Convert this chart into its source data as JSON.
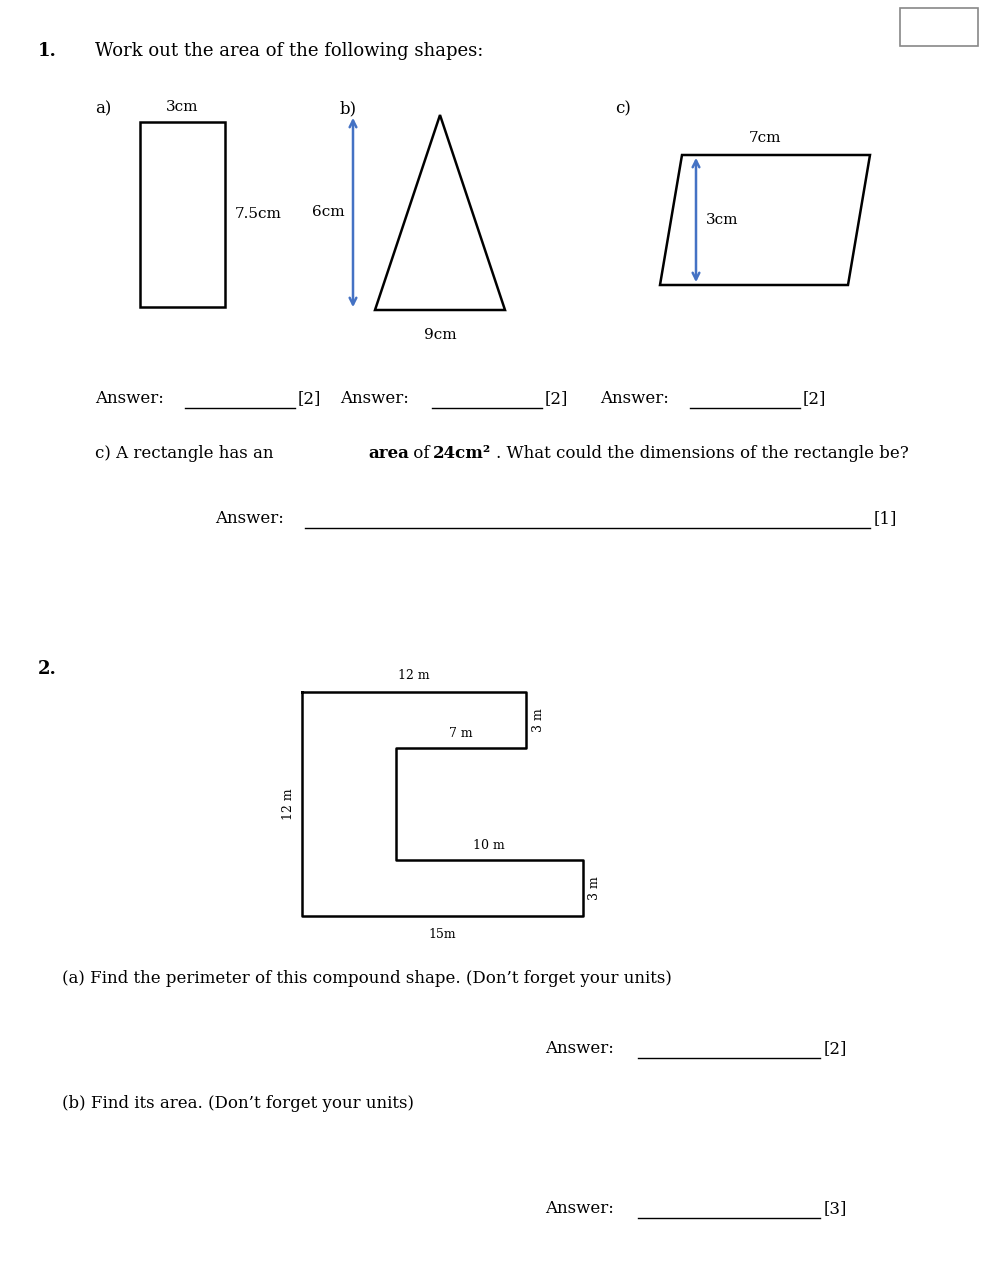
{
  "bg_color": "#ffffff",
  "text_color": "#000000",
  "shape_color": "#000000",
  "arrow_color": "#4472c4",
  "line_width": 1.8,
  "q1_label": "1.",
  "q1_text": "Work out the area of the following shapes:",
  "q2_label": "2.",
  "sec_a": "a)",
  "sec_b": "b)",
  "sec_c": "c)",
  "rect_w_label": "3cm",
  "rect_h_label": "7.5cm",
  "tri_base_label": "9cm",
  "tri_height_label": "6cm",
  "para_top_label": "7cm",
  "para_height_label": "3cm",
  "compound_12m_top": "12 m",
  "compound_12m_left": "12 m",
  "compound_15m_bot": "15m",
  "compound_7m": "7 m",
  "compound_10m": "10 m",
  "compound_3m_tr": "3 m",
  "compound_3m_br": "3 m",
  "q2a_text": "(a) Find the perimeter of this compound shape. (Don’t forget your units)",
  "q2b_text": "(b) Find its area. (Don’t forget your units)"
}
